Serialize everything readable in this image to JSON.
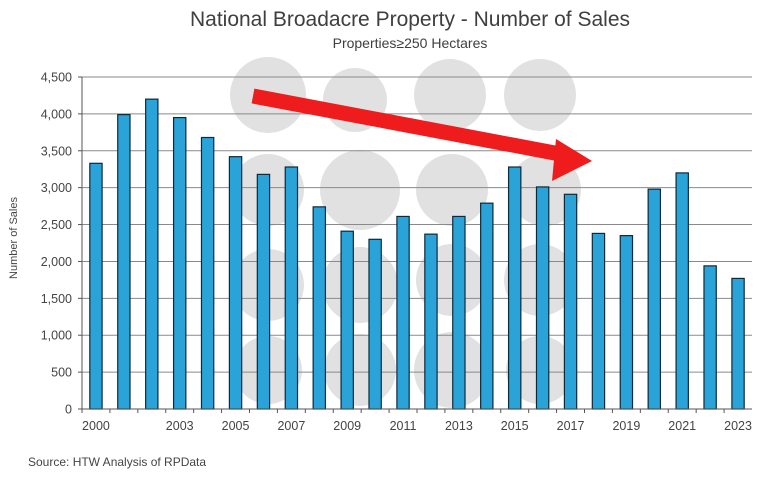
{
  "chart_data": {
    "type": "bar",
    "title": "National Broadacre Property - Number of Sales",
    "subtitle": "Properties≥250 Hectares",
    "ylabel": "Number of Sales",
    "xlabel": "",
    "years": [
      "2000",
      "2001",
      "2002",
      "2003",
      "2004",
      "2005",
      "2006",
      "2007",
      "2008",
      "2009",
      "2010",
      "2011",
      "2012",
      "2013",
      "2014",
      "2015",
      "2016",
      "2017",
      "2018",
      "2019",
      "2020",
      "2021",
      "2022",
      "2023"
    ],
    "values": [
      3330,
      3990,
      4200,
      3950,
      3680,
      3420,
      3180,
      3280,
      2740,
      2410,
      2300,
      2610,
      2370,
      2610,
      2790,
      3280,
      3010,
      2910,
      2380,
      2350,
      2980,
      3200,
      1940,
      1770
    ],
    "x_tick_labels": [
      "2000",
      "2003",
      "2005",
      "2007",
      "2009",
      "2011",
      "2013",
      "2015",
      "2017",
      "2019",
      "2021",
      "2023"
    ],
    "y_tick_labels": [
      "0",
      "500",
      "1,000",
      "1,500",
      "2,000",
      "2,500",
      "3,000",
      "3,500",
      "4,000",
      "4,500"
    ],
    "ylim": [
      0,
      4500
    ],
    "grid": true,
    "bar_color": "#2aa3d8",
    "bar_edge_color": "#0d2a3a",
    "annotation": {
      "type": "arrow",
      "direction": "down",
      "color": "#ee1c1c"
    },
    "source": "Source: HTW Analysis of RPData"
  }
}
